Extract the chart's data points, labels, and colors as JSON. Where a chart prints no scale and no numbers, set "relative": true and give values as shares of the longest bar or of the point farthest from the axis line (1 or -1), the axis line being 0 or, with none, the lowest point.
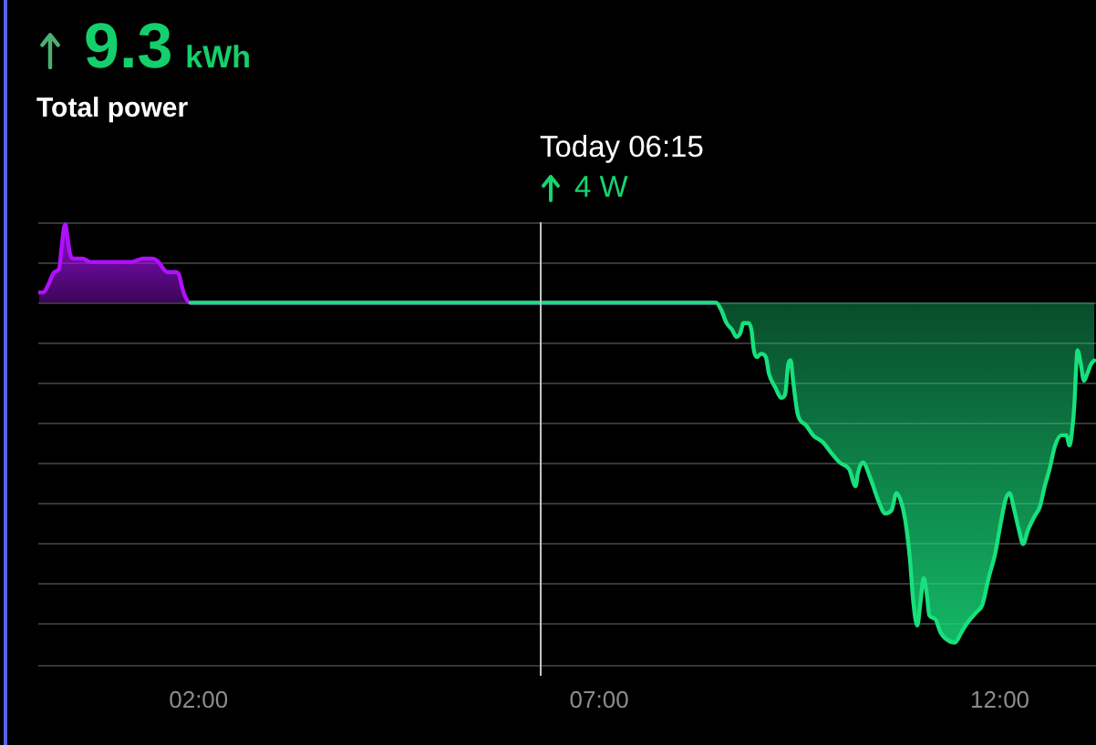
{
  "chart_data": {
    "type": "area",
    "title": "Total power",
    "annotations": [
      "9.3 kWh",
      "4 W"
    ],
    "ref_lines": [
      {
        "axis": "x",
        "value": 6.25,
        "label": "Today 06:15",
        "color": "#c4c4c4"
      }
    ],
    "relative": true,
    "grid": "y",
    "tick_labels": "x",
    "marker": "none",
    "xlim": [
      0,
      13.2
    ],
    "xticks": [
      {
        "value": 2,
        "label": "02:00"
      },
      {
        "value": 7,
        "label": "07:00"
      },
      {
        "value": 12,
        "label": "12:00"
      }
    ],
    "series": [
      {
        "color": "#b010ff",
        "x": [
          0.01,
          0.06,
          0.12,
          0.2,
          0.26,
          0.29,
          0.32,
          0.34,
          0.36,
          0.4,
          0.44,
          0.55,
          0.65,
          0.74,
          0.83,
          0.93,
          1.05,
          1.16,
          1.31,
          1.42,
          1.5,
          1.56,
          1.61,
          1.71,
          1.76,
          1.79,
          1.83,
          1.89,
          1.95,
          8.46
        ],
        "values": [
          0.03,
          0.03,
          0.05,
          0.09,
          0.1,
          0.16,
          0.22,
          0.23,
          0.2,
          0.14,
          0.13,
          0.13,
          0.12,
          0.12,
          0.12,
          0.12,
          0.12,
          0.12,
          0.13,
          0.13,
          0.12,
          0.1,
          0.09,
          0.09,
          0.08,
          0.05,
          0.02,
          0,
          0,
          0
        ]
      },
      {
        "color": "#18e07c",
        "x": [
          1.9,
          8.46,
          8.52,
          8.59,
          8.66,
          8.71,
          8.76,
          8.8,
          8.86,
          8.9,
          8.93,
          8.97,
          9.02,
          9.08,
          9.12,
          9.2,
          9.27,
          9.32,
          9.36,
          9.39,
          9.42,
          9.48,
          9.58,
          9.67,
          9.79,
          9.89,
          10.0,
          10.12,
          10.2,
          10.23,
          10.29,
          10.39,
          10.48,
          10.57,
          10.65,
          10.71,
          10.76,
          10.82,
          10.88,
          10.92,
          10.97,
          11.01,
          11.05,
          11.09,
          11.12,
          11.19,
          11.26,
          11.33,
          11.44,
          11.52,
          11.6,
          11.71,
          11.78,
          11.86,
          11.94,
          12.01,
          12.07,
          12.12,
          12.18,
          12.24,
          12.29,
          12.35,
          12.43,
          12.5,
          12.56,
          12.62,
          12.69,
          12.77,
          12.83,
          12.87,
          12.9,
          12.93,
          12.95,
          12.97,
          13.01,
          13.05,
          13.09,
          13.14,
          13.18
        ],
        "values": [
          0,
          0,
          -0.02,
          -0.06,
          -0.08,
          -0.1,
          -0.09,
          -0.06,
          -0.06,
          -0.08,
          -0.14,
          -0.16,
          -0.15,
          -0.16,
          -0.21,
          -0.25,
          -0.28,
          -0.27,
          -0.18,
          -0.17,
          -0.23,
          -0.33,
          -0.36,
          -0.39,
          -0.41,
          -0.44,
          -0.47,
          -0.49,
          -0.54,
          -0.5,
          -0.47,
          -0.52,
          -0.58,
          -0.62,
          -0.61,
          -0.56,
          -0.58,
          -0.64,
          -0.76,
          -0.88,
          -0.95,
          -0.88,
          -0.81,
          -0.86,
          -0.92,
          -0.93,
          -0.97,
          -0.99,
          -1,
          -0.97,
          -0.94,
          -0.91,
          -0.89,
          -0.81,
          -0.74,
          -0.65,
          -0.58,
          -0.56,
          -0.61,
          -0.67,
          -0.71,
          -0.67,
          -0.63,
          -0.6,
          -0.54,
          -0.49,
          -0.42,
          -0.39,
          -0.39,
          -0.42,
          -0.38,
          -0.3,
          -0.2,
          -0.14,
          -0.18,
          -0.23,
          -0.21,
          -0.18,
          -0.17
        ]
      }
    ]
  }
}
